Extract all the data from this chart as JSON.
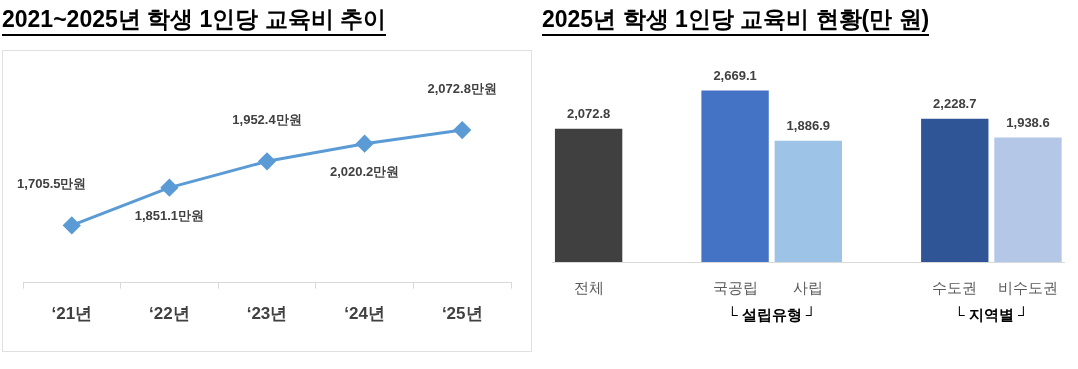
{
  "chart_data": [
    {
      "type": "line",
      "title": "2021~2025년 학생 1인당 교육비 추이",
      "categories": [
        "‘21년",
        "‘22년",
        "‘23년",
        "‘24년",
        "‘25년"
      ],
      "marker": "diamond",
      "series": [
        {
          "color": "#5b9bd5",
          "values": [
            1705.5,
            1851.1,
            1952.4,
            2020.2,
            2072.8
          ],
          "value_labels": [
            "1,705.5만원",
            "1,851.1만원",
            "1,952.4만원",
            "2,020.2만원",
            "2,072.8만원"
          ]
        }
      ]
    },
    {
      "type": "bar",
      "title": "2025년 학생 1인당 교육비 현황(만 원)",
      "categories": [
        "전체",
        null,
        "국공립",
        "사립",
        null,
        "수도권",
        "비수도권"
      ],
      "values": [
        2072.8,
        null,
        2669.1,
        1886.9,
        null,
        2228.7,
        1938.6
      ],
      "colors": [
        "#404040",
        "#ffffff",
        "#4472c4",
        "#9dc3e6",
        "#ffffff",
        "#2f5597",
        "#b4c7e7"
      ],
      "value_labels": [
        "2,072.8",
        null,
        "2,669.1",
        "1,886.9",
        null,
        "2,228.7",
        "1,938.6"
      ],
      "annotations": [
        "└ 설립유형 ┘",
        "└ 지역별 ┘"
      ]
    }
  ]
}
